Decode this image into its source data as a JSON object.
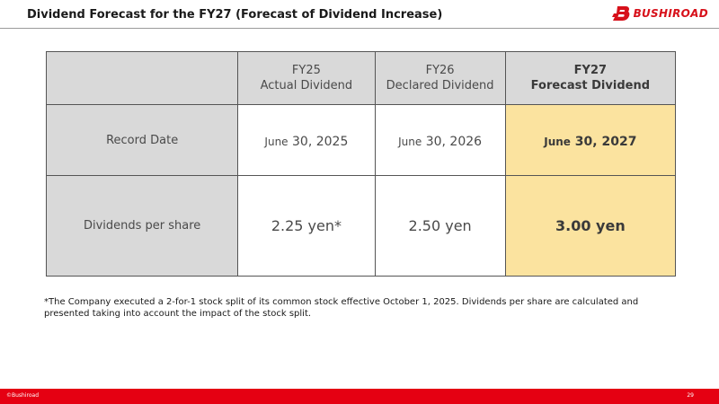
{
  "header": {
    "title": "Dividend Forecast for the FY27 (Forecast of Dividend Increase)",
    "logo_text": "BUSHIROAD",
    "logo_icon": "bushiroad-b-icon",
    "brand_color": "#d7101a"
  },
  "table": {
    "columns": [
      {
        "line1": "",
        "line2": ""
      },
      {
        "line1": "FY25",
        "line2": "Actual Dividend"
      },
      {
        "line1": "FY26",
        "line2": "Declared Dividend"
      },
      {
        "line1": "FY27",
        "line2": "Forecast Dividend"
      }
    ],
    "rows": [
      {
        "label": "Record Date",
        "cells": [
          {
            "month": "June",
            "rest": " 30, 2025"
          },
          {
            "month": "June",
            "rest": " 30, 2026"
          },
          {
            "month": "June",
            "rest": " 30, 2027"
          }
        ]
      },
      {
        "label": "Dividends per share",
        "cells": [
          "2.25 yen*",
          "2.50 yen",
          "3.00 yen"
        ]
      }
    ],
    "highlight_color": "#fbe39f",
    "header_color": "#d9d9d9"
  },
  "footnote": "*The Company executed a 2-for-1 stock split of its common stock effective October 1, 2025. Dividends per share are calculated and presented taking into account the impact of the stock split.",
  "footer": {
    "copyright": "©Bushiroad",
    "page_number": "29",
    "color": "#e50012"
  }
}
